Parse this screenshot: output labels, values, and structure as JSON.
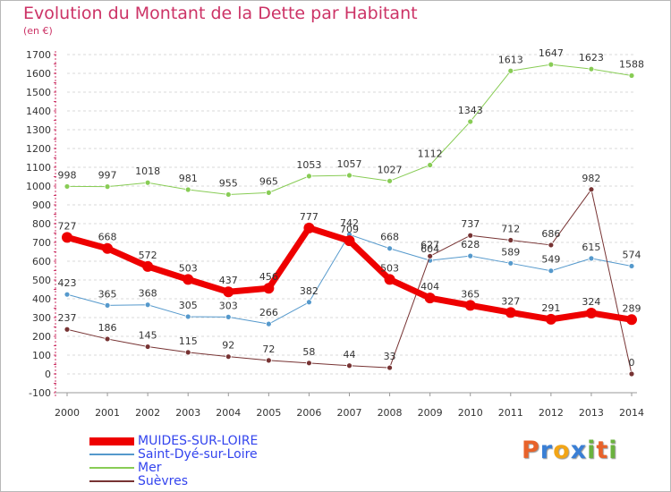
{
  "header": {
    "title": "Evolution du Montant de la Dette par Habitant",
    "unit": "(en €)"
  },
  "brand": {
    "letters": [
      "P",
      "r",
      "o",
      "x",
      "i",
      "t",
      "i"
    ],
    "colors": [
      "#e8622a",
      "#3a7fd5",
      "#f2a516",
      "#3a7fd5",
      "#6ab23e",
      "#e8622a",
      "#6ab23e"
    ]
  },
  "chart_data": {
    "type": "line",
    "title": "Evolution du Montant de la Dette par Habitant",
    "ylabel": "(en €)",
    "xlabel": "",
    "x": [
      "2000",
      "2001",
      "2002",
      "2003",
      "2004",
      "2005",
      "2006",
      "2007",
      "2008",
      "2009",
      "2010",
      "2011",
      "2012",
      "2013",
      "2014"
    ],
    "ylim": [
      -100,
      1700
    ],
    "yticks": [
      -100,
      0,
      100,
      200,
      300,
      400,
      500,
      600,
      700,
      800,
      900,
      1000,
      1100,
      1200,
      1300,
      1400,
      1500,
      1600,
      1700
    ],
    "grid": true,
    "legend_position": "bottom-left",
    "series": [
      {
        "name": "Mer",
        "color": "#88cc55",
        "width": 1,
        "values": [
          998,
          997,
          1018,
          981,
          955,
          965,
          1053,
          1057,
          1027,
          1112,
          1343,
          1613,
          1647,
          1623,
          1588
        ]
      },
      {
        "name": "Saint-Dyé-sur-Loire",
        "color": "#5599cc",
        "width": 1,
        "values": [
          423,
          365,
          368,
          305,
          303,
          266,
          382,
          742,
          668,
          604,
          628,
          589,
          549,
          615,
          574
        ]
      },
      {
        "name": "Suèvres",
        "color": "#773333",
        "width": 1,
        "values": [
          237,
          186,
          145,
          115,
          92,
          72,
          58,
          44,
          33,
          627,
          737,
          712,
          686,
          982,
          0
        ]
      },
      {
        "name": "MUIDES-SUR-LOIRE",
        "color": "#ee0000",
        "width": 7,
        "values": [
          727,
          668,
          572,
          503,
          437,
          456,
          777,
          709,
          503,
          404,
          365,
          327,
          291,
          324,
          289
        ]
      }
    ],
    "legend_order": [
      "MUIDES-SUR-LOIRE",
      "Saint-Dyé-sur-Loire",
      "Mer",
      "Suèvres"
    ]
  }
}
